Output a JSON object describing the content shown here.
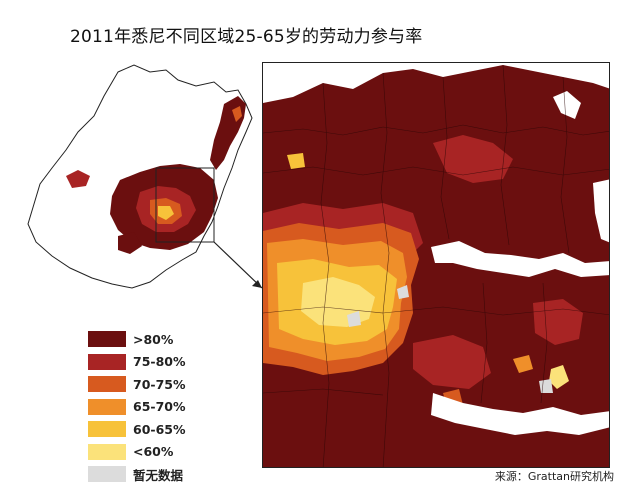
{
  "title": "2011年悉尼不同区域25-65岁的劳动力参与率",
  "source": "来源：Grattan研究机构",
  "legend": [
    {
      "label": ">80%",
      "color": "#6b0f0f"
    },
    {
      "label": "75-80%",
      "color": "#a82424"
    },
    {
      "label": "70-75%",
      "color": "#d75a1f"
    },
    {
      "label": "65-70%",
      "color": "#ef8f2a"
    },
    {
      "label": "60-65%",
      "color": "#f7c23a"
    },
    {
      "label": "<60%",
      "color": "#fbe27a"
    },
    {
      "label": "暂无数据",
      "color": "#dcdcdc"
    }
  ]
}
